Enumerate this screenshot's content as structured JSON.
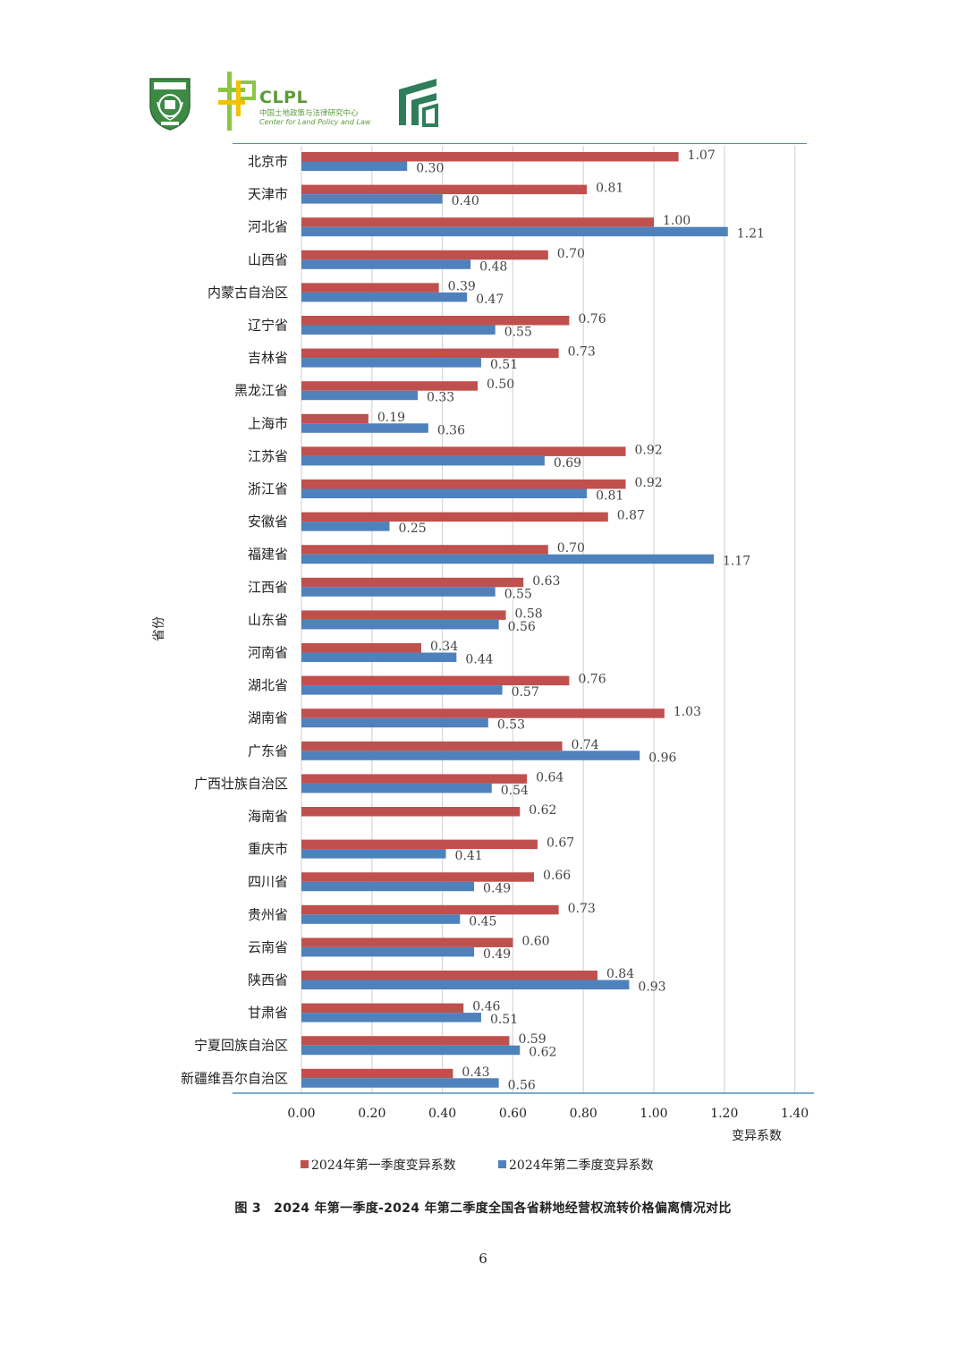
{
  "header": {
    "clpl_name": "CLPL",
    "clpl_cn": "中国土地政策与法律研究中心",
    "clpl_en": "Center for Land Policy and Law"
  },
  "colors": {
    "q1": "#c0504d",
    "q2": "#4f81bd",
    "grid": "#d9d9d9",
    "rule": "#4f8fc4"
  },
  "chart_data": {
    "type": "bar",
    "orientation": "horizontal",
    "categories": [
      "北京市",
      "天津市",
      "河北省",
      "山西省",
      "内蒙古自治区",
      "辽宁省",
      "吉林省",
      "黑龙江省",
      "上海市",
      "江苏省",
      "浙江省",
      "安徽省",
      "福建省",
      "江西省",
      "山东省",
      "河南省",
      "湖北省",
      "湖南省",
      "广东省",
      "广西壮族自治区",
      "海南省",
      "重庆市",
      "四川省",
      "贵州省",
      "云南省",
      "陕西省",
      "甘肃省",
      "宁夏回族自治区",
      "新疆维吾尔自治区"
    ],
    "series": [
      {
        "name": "2024年第一季度变异系数",
        "values": [
          1.07,
          0.81,
          1.0,
          0.7,
          0.39,
          0.76,
          0.73,
          0.5,
          0.19,
          0.92,
          0.92,
          0.87,
          0.7,
          0.63,
          0.58,
          0.34,
          0.76,
          1.03,
          0.74,
          0.64,
          0.62,
          0.67,
          0.66,
          0.73,
          0.6,
          0.84,
          0.46,
          0.59,
          0.43
        ]
      },
      {
        "name": "2024年第二季度变异系数",
        "values": [
          0.3,
          0.4,
          1.21,
          0.48,
          0.47,
          0.55,
          0.51,
          0.33,
          0.36,
          0.69,
          0.81,
          0.25,
          1.17,
          0.55,
          0.56,
          0.44,
          0.57,
          0.53,
          0.96,
          0.54,
          null,
          0.41,
          0.49,
          0.45,
          0.49,
          0.93,
          0.51,
          0.62,
          0.56
        ]
      }
    ],
    "xlim": [
      0,
      1.4
    ],
    "xticks": [
      "0.00",
      "0.20",
      "0.40",
      "0.60",
      "0.80",
      "1.00",
      "1.20",
      "1.40"
    ],
    "xlabel": "变异系数",
    "ylabel": "省份",
    "grid": true,
    "legend_position": "bottom"
  },
  "caption": "图 3　2024 年第一季度-2024 年第二季度全国各省耕地经营权流转价格偏离情况对比",
  "page_number": "6"
}
